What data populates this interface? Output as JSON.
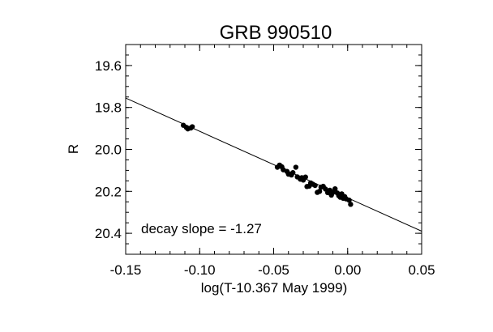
{
  "chart_data": {
    "type": "scatter",
    "title": "GRB 990510",
    "xlabel": "log(T-10.367 May 1999)",
    "ylabel": "R",
    "xlim": [
      -0.15,
      0.05
    ],
    "ylim": [
      19.5,
      20.5
    ],
    "y_inverted": true,
    "xticks": [
      -0.15,
      -0.1,
      -0.05,
      0.0,
      0.05
    ],
    "xtick_labels": [
      "-0.15",
      "-0.10",
      "-0.05",
      "0.00",
      "0.05"
    ],
    "yticks": [
      19.6,
      19.8,
      20.0,
      20.2,
      20.4
    ],
    "ytick_labels": [
      "19.6",
      "19.8",
      "20.0",
      "20.2",
      "20.4"
    ],
    "annotation": "decay slope = -1.27",
    "grid": false,
    "fit_line": {
      "slope": -1.27,
      "x": [
        -0.15,
        0.05
      ],
      "y": [
        19.755,
        20.39
      ]
    },
    "series": [
      {
        "points": [
          [
            -0.111,
            19.885
          ],
          [
            -0.109,
            19.895
          ],
          [
            -0.108,
            19.902
          ],
          [
            -0.106,
            19.898
          ],
          [
            -0.105,
            19.892
          ],
          [
            -0.0475,
            20.085
          ],
          [
            -0.046,
            20.075
          ],
          [
            -0.0445,
            20.083
          ],
          [
            -0.0435,
            20.097
          ],
          [
            -0.041,
            20.105
          ],
          [
            -0.04,
            20.118
          ],
          [
            -0.038,
            20.122
          ],
          [
            -0.037,
            20.111
          ],
          [
            -0.035,
            20.085
          ],
          [
            -0.034,
            20.131
          ],
          [
            -0.032,
            20.142
          ],
          [
            -0.031,
            20.135
          ],
          [
            -0.03,
            20.146
          ],
          [
            -0.0285,
            20.132
          ],
          [
            -0.0275,
            20.177
          ],
          [
            -0.026,
            20.175
          ],
          [
            -0.025,
            20.16
          ],
          [
            -0.0235,
            20.166
          ],
          [
            -0.022,
            20.172
          ],
          [
            -0.0205,
            20.205
          ],
          [
            -0.019,
            20.2
          ],
          [
            -0.018,
            20.18
          ],
          [
            -0.0165,
            20.176
          ],
          [
            -0.015,
            20.189
          ],
          [
            -0.0135,
            20.206
          ],
          [
            -0.012,
            20.195
          ],
          [
            -0.011,
            20.218
          ],
          [
            -0.01,
            20.205
          ],
          [
            -0.0085,
            20.188
          ],
          [
            -0.007,
            20.208
          ],
          [
            -0.006,
            20.221
          ],
          [
            -0.005,
            20.228
          ],
          [
            -0.004,
            20.212
          ],
          [
            -0.003,
            20.233
          ],
          [
            -0.002,
            20.225
          ],
          [
            -0.001,
            20.236
          ],
          [
            0.001,
            20.242
          ],
          [
            0.002,
            20.262
          ]
        ]
      }
    ]
  }
}
